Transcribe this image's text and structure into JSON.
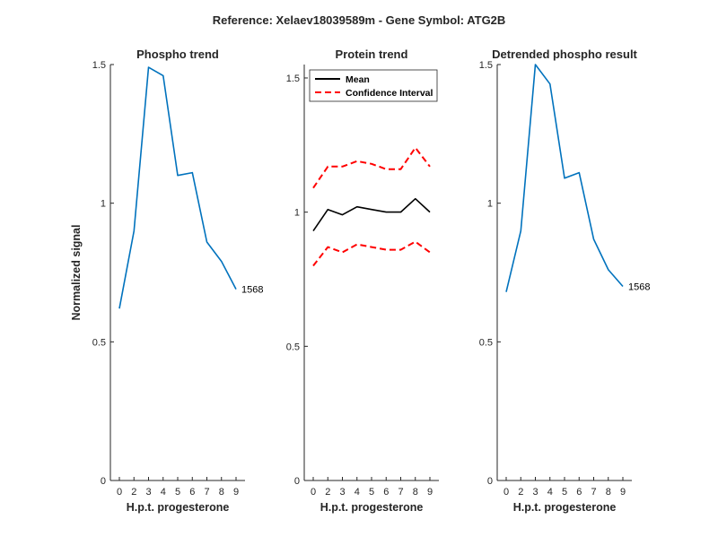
{
  "figure": {
    "suptitle": "Reference:  Xelaev18039589m - Gene Symbol:  ATG2B"
  },
  "chart_data": [
    {
      "type": "line",
      "title": "Phospho trend",
      "xlabel": "H.p.t. progesterone",
      "ylabel": "Normalized signal",
      "categories": [
        "0",
        "2",
        "3",
        "4",
        "5",
        "6",
        "7",
        "8",
        "9"
      ],
      "ylim": [
        0,
        1.5
      ],
      "yticks": [
        0,
        0.5,
        1,
        1.5
      ],
      "ytick_labels": [
        "0",
        "0.5",
        "1",
        "1.5"
      ],
      "series": [
        {
          "values": [
            0.62,
            0.9,
            1.49,
            1.46,
            1.1,
            1.11,
            0.86,
            0.79,
            0.69
          ],
          "color": "#0072BD",
          "dash": "solid",
          "end_label": "1568"
        }
      ],
      "legend": null
    },
    {
      "type": "line",
      "title": "Protein trend",
      "xlabel": "H.p.t. progesterone",
      "ylabel": "",
      "categories": [
        "0",
        "2",
        "3",
        "4",
        "5",
        "6",
        "7",
        "8",
        "9"
      ],
      "ylim": [
        0,
        1.55
      ],
      "yticks": [
        0,
        0.5,
        1,
        1.5
      ],
      "ytick_labels": [
        "0",
        "0.5",
        "1",
        "1.5"
      ],
      "series": [
        {
          "name": "Mean",
          "values": [
            0.93,
            1.01,
            0.99,
            1.02,
            1.01,
            1.0,
            1.0,
            1.05,
            1.0
          ],
          "color": "#000000",
          "dash": "solid"
        },
        {
          "name": "Confidence Interval",
          "values": [
            1.09,
            1.17,
            1.17,
            1.19,
            1.18,
            1.16,
            1.16,
            1.24,
            1.17
          ],
          "color": "#FF0000",
          "dash": "dashed"
        },
        {
          "values": [
            0.8,
            0.87,
            0.85,
            0.88,
            0.87,
            0.86,
            0.86,
            0.89,
            0.85
          ],
          "color": "#FF0000",
          "dash": "dashed"
        }
      ],
      "legend": {
        "position": "top-left",
        "entries": [
          {
            "label": "Mean",
            "color": "#000000",
            "dash": "solid"
          },
          {
            "label": "Confidence Interval",
            "color": "#FF0000",
            "dash": "dashed"
          }
        ]
      }
    },
    {
      "type": "line",
      "title": "Detrended phospho result",
      "xlabel": "H.p.t. progesterone",
      "ylabel": "",
      "categories": [
        "0",
        "2",
        "3",
        "4",
        "5",
        "6",
        "7",
        "8",
        "9"
      ],
      "ylim": [
        0,
        1.5
      ],
      "yticks": [
        0,
        0.5,
        1,
        1.5
      ],
      "ytick_labels": [
        "0",
        "0.5",
        "1",
        "1.5"
      ],
      "series": [
        {
          "values": [
            0.68,
            0.9,
            1.5,
            1.43,
            1.09,
            1.11,
            0.87,
            0.76,
            0.7
          ],
          "color": "#0072BD",
          "dash": "solid",
          "end_label": "1568"
        }
      ],
      "legend": null
    }
  ]
}
